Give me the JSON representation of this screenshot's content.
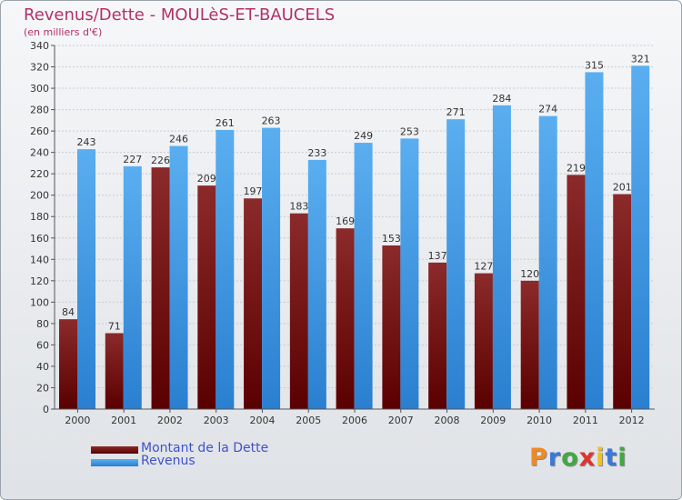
{
  "title": "Revenus/Dette - MOULèS-ET-BAUCELS",
  "subtitle": "(en milliers d'€)",
  "logo": {
    "text": "Proxiti",
    "letters": [
      "P",
      "r",
      "o",
      "x",
      "i",
      "t",
      "i"
    ],
    "colors": [
      "#f08a24",
      "#3c78d8",
      "#43a843",
      "#e0342e",
      "#f0c020",
      "#3c78d8",
      "#43a843"
    ]
  },
  "colors": {
    "debt_top": "#8b2a2a",
    "debt_bottom": "#5a0000",
    "rev_top": "#5aaef0",
    "rev_bottom": "#2a7fd0",
    "title": "#b2306a",
    "legend_text": "#3f53c9"
  },
  "legend": [
    {
      "label": "Montant de la Dette",
      "series": "debt"
    },
    {
      "label": "Revenus",
      "series": "rev"
    }
  ],
  "chart_data": {
    "type": "bar",
    "title": "Revenus/Dette - MOULèS-ET-BAUCELS",
    "ylabel": "(en milliers d'€)",
    "categories": [
      "2000",
      "2001",
      "2002",
      "2003",
      "2004",
      "2005",
      "2006",
      "2007",
      "2008",
      "2009",
      "2010",
      "2011",
      "2012"
    ],
    "series": [
      {
        "name": "Montant de la Dette",
        "key": "debt",
        "values": [
          84,
          71,
          226,
          209,
          197,
          183,
          169,
          153,
          137,
          127,
          120,
          219,
          201
        ]
      },
      {
        "name": "Revenus",
        "key": "rev",
        "values": [
          243,
          227,
          246,
          261,
          263,
          233,
          249,
          253,
          271,
          284,
          274,
          315,
          321
        ]
      }
    ],
    "ylim": [
      0,
      340
    ],
    "yticks": [
      0,
      20,
      40,
      60,
      80,
      100,
      120,
      140,
      160,
      180,
      200,
      220,
      240,
      260,
      280,
      300,
      320,
      340
    ],
    "grid": true,
    "legend_position": "bottom-left"
  }
}
